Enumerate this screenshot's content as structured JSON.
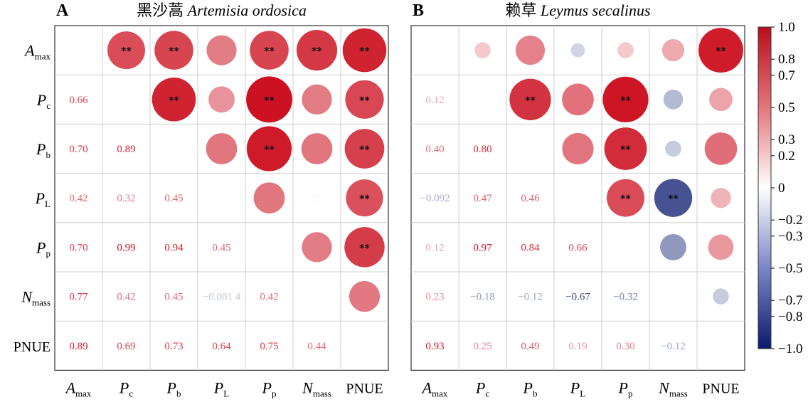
{
  "chart_data": [
    {
      "type": "heatmap",
      "panel_label": "A",
      "title_cn": "黑沙蒿",
      "title_latin": "Artemisia ordosica",
      "variables": [
        {
          "main": "A",
          "sub": "max"
        },
        {
          "main": "P",
          "sub": "c"
        },
        {
          "main": "P",
          "sub": "b"
        },
        {
          "main": "P",
          "sub": "L"
        },
        {
          "main": "P",
          "sub": "p"
        },
        {
          "main": "N",
          "sub": "mass"
        },
        {
          "main": "PNUE",
          "sub": ""
        }
      ],
      "lower_labels": [
        [
          1,
          0,
          "0.66"
        ],
        [
          2,
          0,
          "0.70"
        ],
        [
          2,
          1,
          "0.89"
        ],
        [
          3,
          0,
          "0.42"
        ],
        [
          3,
          1,
          "0.32"
        ],
        [
          3,
          2,
          "0.45"
        ],
        [
          4,
          0,
          "0.70"
        ],
        [
          4,
          1,
          "0.99"
        ],
        [
          4,
          2,
          "0.94"
        ],
        [
          4,
          3,
          "0.45"
        ],
        [
          5,
          0,
          "0.77"
        ],
        [
          5,
          1,
          "0.42"
        ],
        [
          5,
          2,
          "0.45"
        ],
        [
          5,
          3,
          "−0.001 4"
        ],
        [
          5,
          4,
          "0.42"
        ],
        [
          6,
          0,
          "0.89"
        ],
        [
          6,
          1,
          "0.69"
        ],
        [
          6,
          2,
          "0.73"
        ],
        [
          6,
          3,
          "0.64"
        ],
        [
          6,
          4,
          "0.75"
        ],
        [
          6,
          5,
          "0.44"
        ]
      ],
      "upper_cells": [
        [
          0,
          1,
          0.66,
          "**"
        ],
        [
          0,
          2,
          0.7,
          "**"
        ],
        [
          0,
          3,
          0.42,
          ""
        ],
        [
          0,
          4,
          0.7,
          "**"
        ],
        [
          0,
          5,
          0.77,
          "**"
        ],
        [
          0,
          6,
          0.89,
          "**"
        ],
        [
          1,
          2,
          0.89,
          "**"
        ],
        [
          1,
          3,
          0.32,
          ""
        ],
        [
          1,
          4,
          0.99,
          "**"
        ],
        [
          1,
          5,
          0.42,
          ""
        ],
        [
          1,
          6,
          0.69,
          "**"
        ],
        [
          2,
          3,
          0.45,
          ""
        ],
        [
          2,
          4,
          0.94,
          "**"
        ],
        [
          2,
          5,
          0.45,
          ""
        ],
        [
          2,
          6,
          0.73,
          "**"
        ],
        [
          3,
          4,
          0.45,
          ""
        ],
        [
          3,
          5,
          -0.0014,
          ""
        ],
        [
          3,
          6,
          0.64,
          "**"
        ],
        [
          4,
          5,
          0.42,
          ""
        ],
        [
          4,
          6,
          0.75,
          "**"
        ],
        [
          5,
          6,
          0.44,
          ""
        ]
      ]
    },
    {
      "type": "heatmap",
      "panel_label": "B",
      "title_cn": "赖草",
      "title_latin": "Leymus secalinus",
      "variables": [
        {
          "main": "A",
          "sub": "max"
        },
        {
          "main": "P",
          "sub": "c"
        },
        {
          "main": "P",
          "sub": "b"
        },
        {
          "main": "P",
          "sub": "L"
        },
        {
          "main": "P",
          "sub": "p"
        },
        {
          "main": "N",
          "sub": "mass"
        },
        {
          "main": "PNUE",
          "sub": ""
        }
      ],
      "lower_labels": [
        [
          1,
          0,
          "0.12"
        ],
        [
          2,
          0,
          "0.40"
        ],
        [
          2,
          1,
          "0.80"
        ],
        [
          3,
          0,
          "−0.092"
        ],
        [
          3,
          1,
          "0.47"
        ],
        [
          3,
          2,
          "0.46"
        ],
        [
          4,
          0,
          "0.12"
        ],
        [
          4,
          1,
          "0.97"
        ],
        [
          4,
          2,
          "0.84"
        ],
        [
          4,
          3,
          "0.66"
        ],
        [
          5,
          0,
          "0.23"
        ],
        [
          5,
          1,
          "−0.18"
        ],
        [
          5,
          2,
          "−0.12"
        ],
        [
          5,
          3,
          "−0.67"
        ],
        [
          5,
          4,
          "−0.32"
        ],
        [
          6,
          0,
          "0.93"
        ],
        [
          6,
          1,
          "0.25"
        ],
        [
          6,
          2,
          "0.49"
        ],
        [
          6,
          3,
          "0.19"
        ],
        [
          6,
          4,
          "0.30"
        ],
        [
          6,
          5,
          "−0.12"
        ]
      ],
      "upper_cells": [
        [
          0,
          1,
          0.12,
          ""
        ],
        [
          0,
          2,
          0.4,
          ""
        ],
        [
          0,
          3,
          -0.092,
          ""
        ],
        [
          0,
          4,
          0.12,
          ""
        ],
        [
          0,
          5,
          0.23,
          ""
        ],
        [
          0,
          6,
          0.93,
          "**"
        ],
        [
          1,
          2,
          0.8,
          "**"
        ],
        [
          1,
          3,
          0.47,
          ""
        ],
        [
          1,
          4,
          0.97,
          "**"
        ],
        [
          1,
          5,
          -0.18,
          ""
        ],
        [
          1,
          6,
          0.25,
          ""
        ],
        [
          2,
          3,
          0.46,
          ""
        ],
        [
          2,
          4,
          0.84,
          "**"
        ],
        [
          2,
          5,
          -0.12,
          ""
        ],
        [
          2,
          6,
          0.49,
          ""
        ],
        [
          3,
          4,
          0.66,
          "**"
        ],
        [
          3,
          5,
          -0.67,
          "**"
        ],
        [
          3,
          6,
          0.19,
          ""
        ],
        [
          4,
          5,
          -0.32,
          ""
        ],
        [
          4,
          6,
          0.3,
          ""
        ],
        [
          5,
          6,
          -0.12,
          ""
        ]
      ]
    }
  ],
  "colorbar": {
    "ticks": [
      "1.0",
      "0.8",
      "0.7",
      "0.5",
      "0.3",
      "0.2",
      "0",
      "−0.2",
      "−0.3",
      "−0.5",
      "−0.7",
      "−0.8",
      "−1.0"
    ],
    "range": [
      -1,
      1
    ],
    "color_high": "#cc1020",
    "color_mid": "#ffffff",
    "color_low": "#0a1a6e"
  }
}
